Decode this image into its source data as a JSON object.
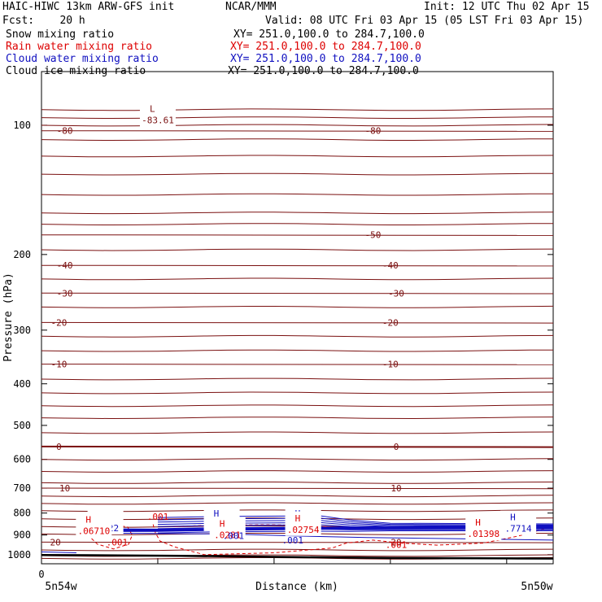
{
  "header": {
    "title_left": "HAIC-HIWC 13km ARW-GFS init",
    "title_center": "NCAR/MMM",
    "init": "Init: 12 UTC Thu 02 Apr 15",
    "fcst": "Fcst:    20 h",
    "valid": "Valid: 08 UTC Fri 03 Apr 15 (05 LST Fri 03 Apr 15)"
  },
  "fields": [
    {
      "name": "Snow mixing ratio",
      "xy": "XY= 251.0,100.0 to 284.7,100.0",
      "color": "#000000"
    },
    {
      "name": "Rain water mixing ratio",
      "xy": "XY= 251.0,100.0 to 284.7,100.0",
      "color": "#dd0000"
    },
    {
      "name": "Cloud water mixing ratio",
      "xy": "XY= 251.0,100.0 to 284.7,100.0",
      "color": "#1010c0"
    },
    {
      "name": "Cloud ice mixing ratio",
      "xy": "XY= 251.0,100.0 to 284.7,100.0",
      "color": "#000000"
    }
  ],
  "colors": {
    "temperature": "#7a1010",
    "rain": "#dd0000",
    "cloud": "#1010c0",
    "terrain": "#000000"
  },
  "chart_data": {
    "type": "contour",
    "xlabel": "Distance (km)",
    "ylabel": "Pressure (hPa)",
    "y_scale": "log",
    "ylim": [
      1050,
      75
    ],
    "y_ticks": [
      100,
      200,
      300,
      400,
      500,
      600,
      700,
      800,
      900,
      1000
    ],
    "xlim": [
      0,
      440
    ],
    "x_ticks": [
      0,
      100,
      200,
      300,
      400
    ],
    "x_tick_labels": [
      "0",
      "",
      "",
      "",
      ""
    ],
    "endpoint_labels": {
      "left": "5n54w",
      "right": "5n50w"
    },
    "temperature_contours": [
      {
        "label": "-80",
        "p": 103,
        "labels_at": [
          20,
          285
        ]
      },
      {
        "label": "-50",
        "p": 180,
        "labels_at": [
          285
        ]
      },
      {
        "label": "-40",
        "p": 212,
        "labels_at": [
          20,
          300
        ]
      },
      {
        "label": "-30",
        "p": 246,
        "labels_at": [
          20,
          305
        ]
      },
      {
        "label": "-20",
        "p": 288,
        "labels_at": [
          15,
          300
        ]
      },
      {
        "label": "-10",
        "p": 360,
        "labels_at": [
          15,
          300
        ]
      },
      {
        "label": "0",
        "p": 560,
        "labels_at": [
          15,
          305
        ]
      },
      {
        "label": "10",
        "p": 700,
        "labels_at": [
          20,
          305
        ]
      },
      {
        "label": "20",
        "p": 935,
        "labels_at": [
          12,
          305
        ]
      }
    ],
    "extrema": [
      {
        "field": "temperature",
        "kind": "L",
        "value": "-83.61",
        "x": 100,
        "p": 96
      },
      {
        "field": "cloud",
        "kind": "H",
        "value": ".7022",
        "x": 55,
        "p": 855
      },
      {
        "field": "cloud",
        "kind": "H",
        "value": ".8131",
        "x": 155,
        "p": 840
      },
      {
        "field": "cloud",
        "kind": "H",
        "value": ".9011",
        "x": 225,
        "p": 840
      },
      {
        "field": "cloud",
        "kind": "H",
        "value": ".7714",
        "x": 410,
        "p": 858
      },
      {
        "field": "rain",
        "kind": "H",
        "value": ".06710",
        "x": 45,
        "p": 868
      },
      {
        "field": "rain",
        "kind": "H",
        "value": ".02754",
        "x": 225,
        "p": 862
      },
      {
        "field": "rain",
        "kind": "H",
        "value": ".0281",
        "x": 160,
        "p": 888
      },
      {
        "field": "rain",
        "kind": "H",
        "value": ".01398",
        "x": 380,
        "p": 882
      }
    ],
    "contour_labels": [
      {
        "field": "rain",
        "value": ".001",
        "x": 65,
        "p": 936
      },
      {
        "field": "rain",
        "value": ".001",
        "x": 100,
        "p": 815
      },
      {
        "field": "rain",
        "value": ".001",
        "x": 305,
        "p": 947
      },
      {
        "field": "cloud",
        "value": ".001",
        "x": 165,
        "p": 903
      },
      {
        "field": "cloud",
        "value": ".001",
        "x": 216,
        "p": 925
      }
    ]
  }
}
